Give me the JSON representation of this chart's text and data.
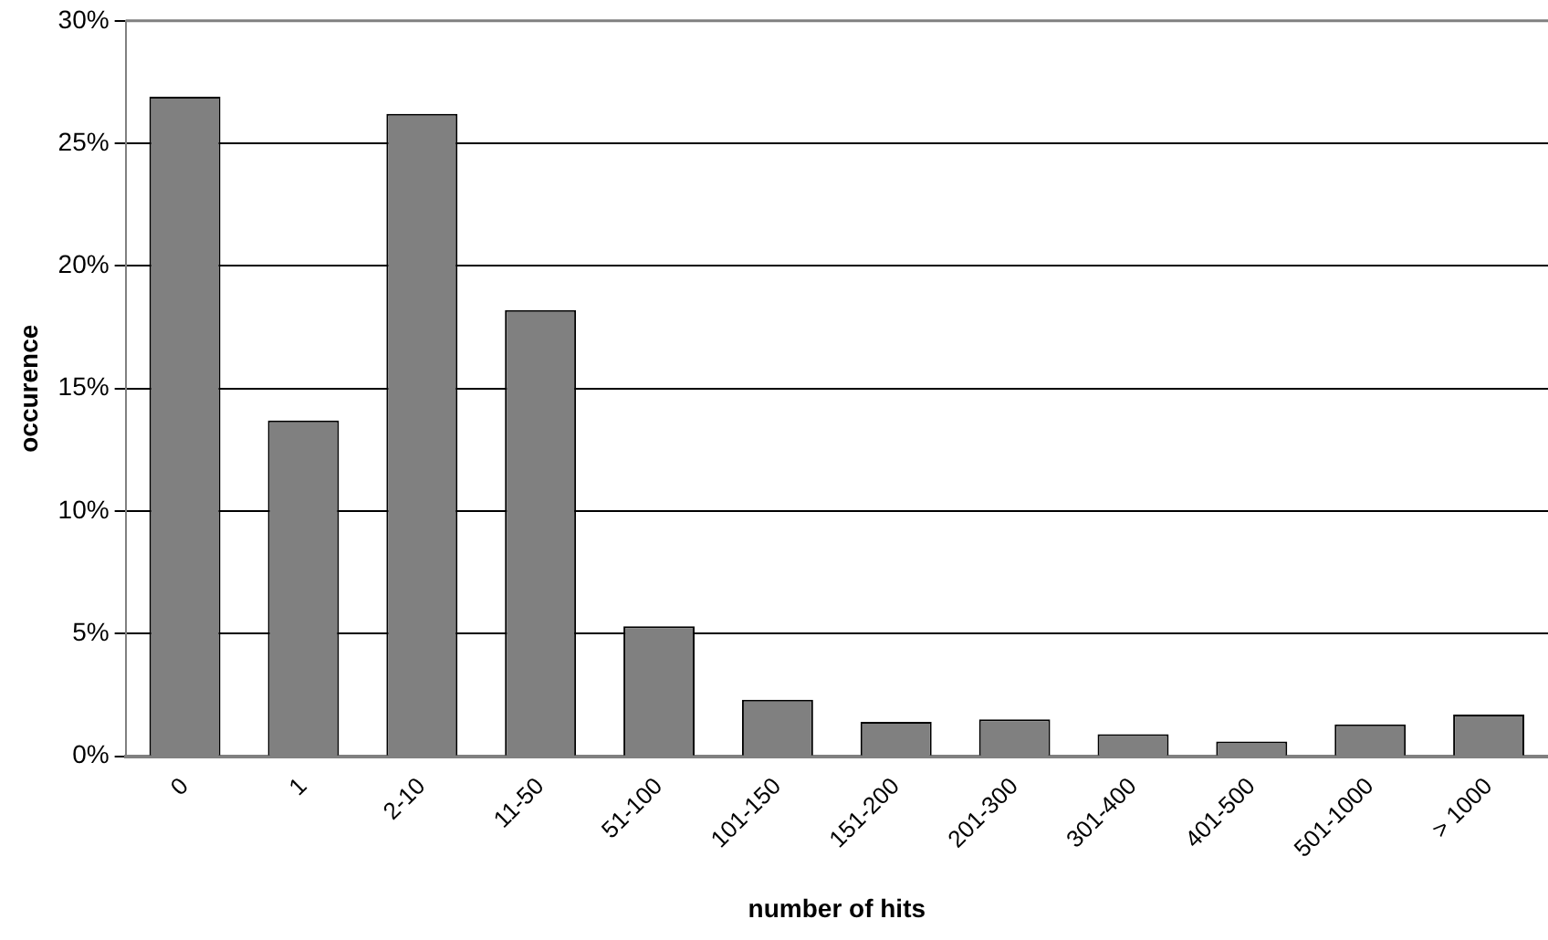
{
  "chart_data": {
    "type": "bar",
    "xlabel": "number of hits",
    "ylabel": "occurence",
    "categories": [
      "0",
      "1",
      "2-10",
      "11-50",
      "51-100",
      "101-150",
      "151-200",
      "201-300",
      "301-400",
      "401-500",
      "501-1000",
      "> 1000"
    ],
    "values": [
      26.9,
      13.7,
      26.2,
      18.2,
      5.3,
      2.3,
      1.4,
      1.5,
      0.9,
      0.6,
      1.3,
      1.7
    ],
    "color": "#808080",
    "ylim": [
      0,
      30
    ],
    "yticks": [
      {
        "value": 0,
        "label": "0%"
      },
      {
        "value": 5,
        "label": "5%"
      },
      {
        "value": 10,
        "label": "10%"
      },
      {
        "value": 15,
        "label": "15%"
      },
      {
        "value": 20,
        "label": "20%"
      },
      {
        "value": 25,
        "label": "25%"
      },
      {
        "value": 30,
        "label": "30%"
      }
    ],
    "grid": "y",
    "legend": false
  }
}
